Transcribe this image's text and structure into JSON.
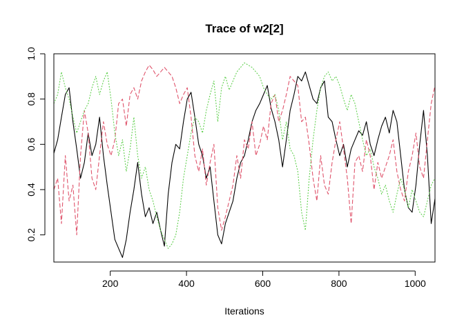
{
  "chart_data": {
    "type": "line",
    "title": "Trace of w2[2]",
    "xlabel": "Iterations",
    "ylabel": "",
    "xlim": [
      52,
      1052
    ],
    "ylim": [
      0.08,
      1.0
    ],
    "x_ticks": [
      200,
      400,
      600,
      800,
      1000
    ],
    "y_ticks": [
      0.2,
      0.4,
      0.6,
      0.8,
      1.0
    ],
    "x_tick_labels": [
      "200",
      "400",
      "600",
      "800",
      "1000"
    ],
    "y_tick_labels": [
      "0.2",
      "0.4",
      "0.6",
      "0.8",
      "1.0"
    ],
    "grid": false,
    "legend": "none",
    "series": [
      {
        "color": "#000000",
        "dash": "solid",
        "x": [
          52,
          62,
          72,
          82,
          92,
          102,
          112,
          122,
          132,
          142,
          152,
          162,
          172,
          182,
          192,
          202,
          212,
          222,
          232,
          242,
          252,
          262,
          272,
          282,
          292,
          302,
          312,
          322,
          332,
          342,
          352,
          362,
          372,
          382,
          392,
          402,
          412,
          422,
          432,
          442,
          452,
          462,
          472,
          482,
          492,
          502,
          512,
          522,
          532,
          542,
          552,
          562,
          572,
          582,
          592,
          602,
          612,
          622,
          632,
          642,
          652,
          662,
          672,
          682,
          692,
          702,
          712,
          722,
          732,
          742,
          752,
          762,
          772,
          782,
          792,
          802,
          812,
          822,
          832,
          842,
          852,
          862,
          872,
          882,
          892,
          902,
          912,
          922,
          932,
          942,
          952,
          962,
          972,
          982,
          992,
          1002,
          1012,
          1022,
          1032,
          1042,
          1052
        ],
        "values": [
          0.56,
          0.62,
          0.72,
          0.82,
          0.85,
          0.7,
          0.58,
          0.45,
          0.52,
          0.65,
          0.55,
          0.6,
          0.72,
          0.55,
          0.42,
          0.3,
          0.18,
          0.14,
          0.1,
          0.18,
          0.3,
          0.4,
          0.52,
          0.38,
          0.28,
          0.32,
          0.25,
          0.3,
          0.22,
          0.15,
          0.38,
          0.52,
          0.6,
          0.58,
          0.7,
          0.8,
          0.83,
          0.72,
          0.6,
          0.55,
          0.45,
          0.5,
          0.35,
          0.2,
          0.16,
          0.25,
          0.3,
          0.35,
          0.45,
          0.52,
          0.55,
          0.62,
          0.7,
          0.75,
          0.78,
          0.82,
          0.86,
          0.76,
          0.7,
          0.62,
          0.5,
          0.62,
          0.75,
          0.82,
          0.9,
          0.88,
          0.92,
          0.86,
          0.8,
          0.78,
          0.85,
          0.88,
          0.72,
          0.7,
          0.62,
          0.55,
          0.6,
          0.5,
          0.58,
          0.62,
          0.66,
          0.64,
          0.7,
          0.6,
          0.55,
          0.62,
          0.68,
          0.72,
          0.65,
          0.75,
          0.7,
          0.55,
          0.4,
          0.32,
          0.3,
          0.42,
          0.6,
          0.75,
          0.55,
          0.25,
          0.36
        ]
      },
      {
        "color": "#df536b",
        "dash": "6,3",
        "x": [
          52,
          62,
          72,
          82,
          92,
          102,
          112,
          122,
          132,
          142,
          152,
          162,
          172,
          182,
          192,
          202,
          212,
          222,
          232,
          242,
          252,
          262,
          272,
          282,
          292,
          302,
          312,
          322,
          332,
          342,
          352,
          362,
          372,
          382,
          392,
          402,
          412,
          422,
          432,
          442,
          452,
          462,
          472,
          482,
          492,
          502,
          512,
          522,
          532,
          542,
          552,
          562,
          572,
          582,
          592,
          602,
          612,
          622,
          632,
          642,
          652,
          662,
          672,
          682,
          692,
          702,
          712,
          722,
          732,
          742,
          752,
          762,
          772,
          782,
          792,
          802,
          812,
          822,
          832,
          842,
          852,
          862,
          872,
          882,
          892,
          902,
          912,
          922,
          932,
          942,
          952,
          962,
          972,
          982,
          992,
          1002,
          1012,
          1022,
          1032,
          1042,
          1052
        ],
        "values": [
          0.4,
          0.45,
          0.25,
          0.55,
          0.35,
          0.42,
          0.2,
          0.55,
          0.75,
          0.65,
          0.45,
          0.4,
          0.55,
          0.7,
          0.6,
          0.55,
          0.62,
          0.78,
          0.8,
          0.68,
          0.82,
          0.85,
          0.8,
          0.88,
          0.92,
          0.95,
          0.93,
          0.9,
          0.92,
          0.94,
          0.92,
          0.9,
          0.85,
          0.78,
          0.82,
          0.85,
          0.72,
          0.55,
          0.48,
          0.58,
          0.42,
          0.52,
          0.6,
          0.32,
          0.22,
          0.28,
          0.35,
          0.42,
          0.55,
          0.45,
          0.62,
          0.58,
          0.7,
          0.55,
          0.6,
          0.68,
          0.62,
          0.78,
          0.82,
          0.7,
          0.75,
          0.82,
          0.9,
          0.88,
          0.86,
          0.7,
          0.72,
          0.6,
          0.45,
          0.35,
          0.55,
          0.42,
          0.38,
          0.52,
          0.62,
          0.7,
          0.58,
          0.45,
          0.25,
          0.52,
          0.55,
          0.48,
          0.62,
          0.55,
          0.4,
          0.52,
          0.45,
          0.5,
          0.55,
          0.62,
          0.48,
          0.4,
          0.35,
          0.48,
          0.55,
          0.65,
          0.5,
          0.45,
          0.62,
          0.78,
          0.86
        ]
      },
      {
        "color": "#61d04f",
        "dash": "2,2",
        "x": [
          52,
          62,
          72,
          82,
          92,
          102,
          112,
          122,
          132,
          142,
          152,
          162,
          172,
          182,
          192,
          202,
          212,
          222,
          232,
          242,
          252,
          262,
          272,
          282,
          292,
          302,
          312,
          322,
          332,
          342,
          352,
          362,
          372,
          382,
          392,
          402,
          412,
          422,
          432,
          442,
          452,
          462,
          472,
          482,
          492,
          502,
          512,
          522,
          532,
          542,
          552,
          562,
          572,
          582,
          592,
          602,
          612,
          622,
          632,
          642,
          652,
          662,
          672,
          682,
          692,
          702,
          712,
          722,
          732,
          742,
          752,
          762,
          772,
          782,
          792,
          802,
          812,
          822,
          832,
          842,
          852,
          862,
          872,
          882,
          892,
          902,
          912,
          922,
          932,
          942,
          952,
          962,
          972,
          982,
          992,
          1002,
          1012,
          1022,
          1032,
          1042,
          1052
        ],
        "values": [
          0.78,
          0.82,
          0.92,
          0.85,
          0.8,
          0.72,
          0.65,
          0.7,
          0.75,
          0.78,
          0.85,
          0.9,
          0.82,
          0.88,
          0.92,
          0.8,
          0.65,
          0.55,
          0.62,
          0.48,
          0.58,
          0.72,
          0.55,
          0.45,
          0.5,
          0.4,
          0.35,
          0.28,
          0.22,
          0.18,
          0.14,
          0.16,
          0.2,
          0.3,
          0.45,
          0.55,
          0.65,
          0.72,
          0.7,
          0.65,
          0.75,
          0.82,
          0.88,
          0.7,
          0.85,
          0.9,
          0.84,
          0.88,
          0.92,
          0.94,
          0.96,
          0.95,
          0.94,
          0.92,
          0.9,
          0.85,
          0.82,
          0.8,
          0.82,
          0.75,
          0.62,
          0.7,
          0.58,
          0.55,
          0.48,
          0.3,
          0.22,
          0.45,
          0.62,
          0.75,
          0.85,
          0.9,
          0.92,
          0.88,
          0.9,
          0.86,
          0.8,
          0.75,
          0.82,
          0.78,
          0.7,
          0.62,
          0.55,
          0.58,
          0.5,
          0.45,
          0.38,
          0.42,
          0.35,
          0.3,
          0.38,
          0.45,
          0.4,
          0.32,
          0.4,
          0.35,
          0.3,
          0.28,
          0.35,
          0.42,
          0.45
        ]
      }
    ]
  }
}
